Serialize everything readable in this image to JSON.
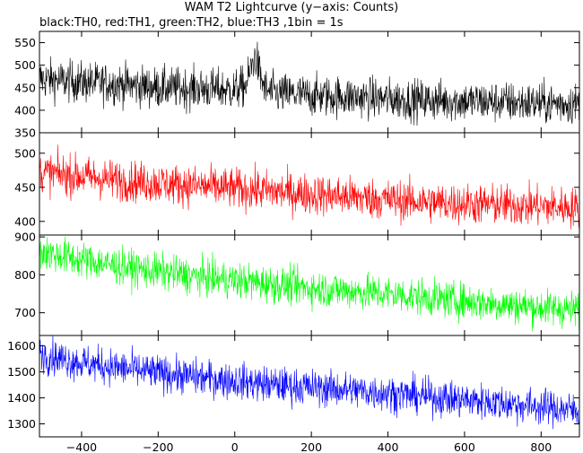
{
  "chart_data": {
    "type": "line",
    "title": "WAM T2 Lightcurve (y−axis: Counts)",
    "subtitle": "black:TH0, red:TH1, green:TH2, blue:TH3 ,1bin = 1s",
    "xlabel": "",
    "ylabel": "",
    "xlim": [
      -510,
      900
    ],
    "x_ticks": [
      -400,
      -200,
      0,
      200,
      400,
      600,
      800
    ],
    "x_tick_labels": [
      "−400",
      "−200",
      "0",
      "200",
      "400",
      "600",
      "800"
    ],
    "bin_seconds": 1,
    "grid": false,
    "panels": [
      {
        "color": "#000000",
        "ylim": [
          350,
          575
        ],
        "y_ticks": [
          350,
          400,
          450,
          500,
          550
        ],
        "series": [
          {
            "x": [
              -510,
              -400,
              -300,
              -200,
              -100,
              0,
              30,
              45,
              55,
              65,
              80,
              100,
              200,
              300,
              400,
              500,
              600,
              700,
              800,
              900
            ],
            "y": [
              470,
              462,
              458,
              450,
              448,
              445,
              455,
              500,
              520,
              480,
              445,
              438,
              432,
              430,
              425,
              422,
              420,
              418,
              415,
              415
            ],
            "noise": 23
          }
        ]
      },
      {
        "color": "#ff0000",
        "ylim": [
          380,
          530
        ],
        "y_ticks": [
          400,
          450,
          500
        ],
        "series": [
          {
            "x": [
              -510,
              -400,
              -300,
              -200,
              -100,
              0,
              100,
              200,
              300,
              400,
              500,
              600,
              700,
              800,
              900
            ],
            "y": [
              472,
              466,
              460,
              456,
              452,
              448,
              444,
              440,
              436,
              432,
              428,
              426,
              424,
              422,
              420
            ],
            "noise": 15
          }
        ]
      },
      {
        "color": "#00ff00",
        "ylim": [
          640,
          905
        ],
        "y_ticks": [
          700,
          800,
          900
        ],
        "series": [
          {
            "x": [
              -510,
              -400,
              -300,
              -200,
              -100,
              0,
              100,
              200,
              300,
              400,
              500,
              600,
              700,
              800,
              900
            ],
            "y": [
              860,
              840,
              822,
              808,
              795,
              785,
              775,
              765,
              757,
              750,
              740,
              730,
              722,
              714,
              708
            ],
            "noise": 24
          }
        ]
      },
      {
        "color": "#0000ff",
        "ylim": [
          1250,
          1640
        ],
        "y_ticks": [
          1300,
          1400,
          1500,
          1600
        ],
        "series": [
          {
            "x": [
              -510,
              -450,
              -400,
              -300,
              -200,
              -100,
              0,
              100,
              200,
              300,
              400,
              500,
              600,
              700,
              800,
              900
            ],
            "y": [
              1570,
              1550,
              1535,
              1515,
              1495,
              1480,
              1465,
              1450,
              1440,
              1430,
              1418,
              1405,
              1392,
              1380,
              1365,
              1350
            ],
            "noise": 35
          }
        ]
      }
    ]
  }
}
